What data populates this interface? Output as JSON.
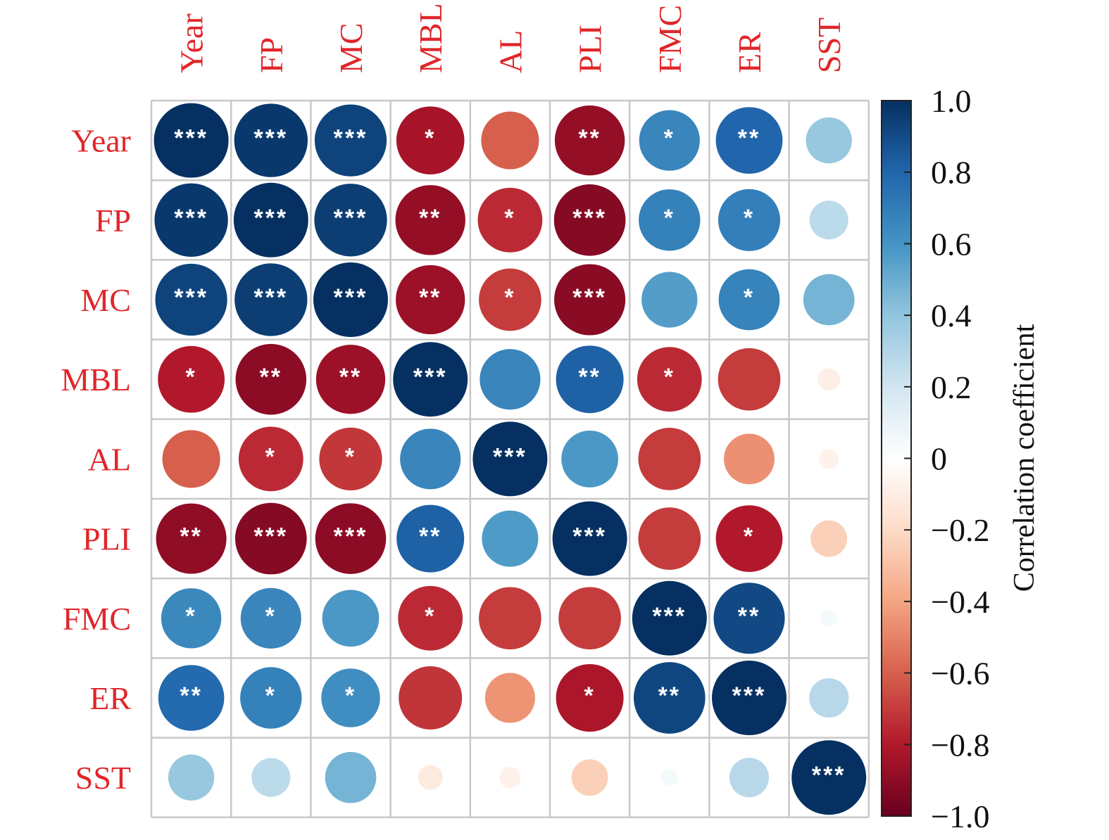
{
  "chart_data": {
    "type": "heatmap",
    "variables": [
      "Year",
      "FP",
      "MC",
      "MBL",
      "AL",
      "PLI",
      "FMC",
      "ER",
      "SST"
    ],
    "matrix": [
      [
        1.0,
        0.97,
        0.93,
        -0.83,
        -0.6,
        -0.88,
        0.66,
        0.8,
        0.38
      ],
      [
        0.97,
        1.0,
        0.95,
        -0.88,
        -0.75,
        -0.92,
        0.68,
        0.69,
        0.27
      ],
      [
        0.93,
        0.95,
        1.0,
        -0.86,
        -0.7,
        -0.91,
        0.56,
        0.67,
        0.47
      ],
      [
        -0.8,
        -0.9,
        -0.86,
        1.0,
        0.66,
        0.82,
        -0.75,
        -0.7,
        -0.09
      ],
      [
        -0.6,
        -0.75,
        -0.71,
        0.66,
        1.0,
        0.58,
        -0.7,
        -0.46,
        -0.07
      ],
      [
        -0.89,
        -0.92,
        -0.9,
        0.82,
        0.57,
        1.0,
        -0.7,
        -0.8,
        -0.24
      ],
      [
        0.65,
        0.66,
        0.58,
        -0.75,
        -0.7,
        -0.7,
        1.0,
        0.91,
        0.05
      ],
      [
        0.78,
        0.68,
        0.62,
        -0.72,
        -0.45,
        -0.82,
        0.92,
        1.0,
        0.28
      ],
      [
        0.38,
        0.27,
        0.47,
        -0.11,
        -0.08,
        -0.24,
        0.05,
        0.28,
        1.0
      ]
    ],
    "significance": [
      [
        "***",
        "***",
        "***",
        "*",
        "",
        "**",
        "*",
        "**",
        ""
      ],
      [
        "***",
        "***",
        "***",
        "**",
        "*",
        "***",
        "*",
        "*",
        ""
      ],
      [
        "***",
        "***",
        "***",
        "**",
        "*",
        "***",
        "",
        "*",
        ""
      ],
      [
        "*",
        "**",
        "**",
        "***",
        "",
        "**",
        "*",
        "",
        ""
      ],
      [
        "",
        "*",
        "*",
        "",
        "***",
        "",
        "",
        "",
        ""
      ],
      [
        "**",
        "***",
        "***",
        "**",
        "",
        "***",
        "",
        "*",
        ""
      ],
      [
        "*",
        "*",
        "",
        "*",
        "",
        "",
        "***",
        "**",
        ""
      ],
      [
        "**",
        "*",
        "*",
        "",
        "",
        "*",
        "**",
        "***",
        ""
      ],
      [
        "",
        "",
        "",
        "",
        "",
        "",
        "",
        "",
        "***"
      ]
    ],
    "colorbar": {
      "title": "Correlation coefficient",
      "range": [
        -1.0,
        1.0
      ],
      "ticks": [
        1.0,
        0.8,
        0.6,
        0.4,
        0.2,
        0,
        -0.2,
        -0.4,
        -0.6,
        -0.8,
        -1.0
      ],
      "tick_labels": [
        "1.0",
        "0.8",
        "0.6",
        "0.4",
        "0.2",
        "0",
        "−0.2",
        "−0.4",
        "−0.6",
        "−0.8",
        "−1.0"
      ]
    },
    "colors": {
      "label": "#e0262a",
      "scale": [
        "#67001f",
        "#b2182b",
        "#d6604d",
        "#f4a582",
        "#fddbc7",
        "#ffffff",
        "#d1e5f0",
        "#92c5de",
        "#4393c3",
        "#2166ac",
        "#053061"
      ]
    },
    "grid": true,
    "legend_position": "right"
  }
}
